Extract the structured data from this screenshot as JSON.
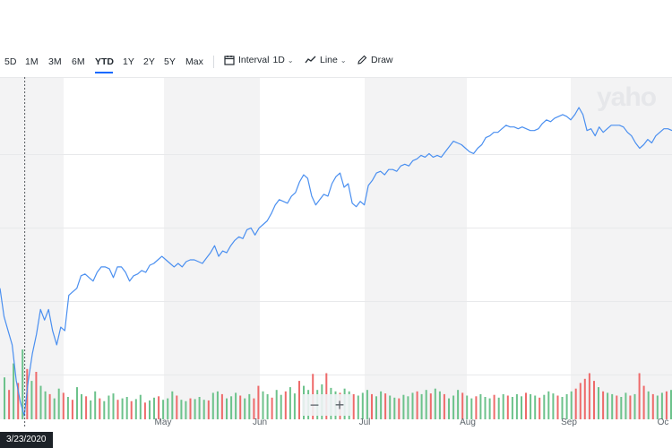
{
  "toolbar": {
    "ranges": [
      "5D",
      "1M",
      "3M",
      "6M",
      "YTD",
      "1Y",
      "2Y",
      "5Y",
      "Max"
    ],
    "active_range": "YTD",
    "interval_label": "Interval",
    "interval_value": "1D",
    "line_label": "Line",
    "draw_label": "Draw"
  },
  "watermark": "yaho",
  "zoom": {
    "minus": "−",
    "plus": "+"
  },
  "cursor_date": "3/23/2020",
  "colors": {
    "line": "#4a8ff0",
    "volume_up": "#6cc28b",
    "volume_down": "#ee6a6a",
    "band": "#f3f3f4",
    "accent": "#0f69ff"
  },
  "chart_data": {
    "type": "line",
    "x_labels": [
      "May",
      "Jun",
      "Jul",
      "Aug",
      "Sep",
      "Oc"
    ],
    "series": [
      {
        "values": [
          0.72,
          0.56,
          0.48,
          0.4,
          0.2,
          0.08,
          0.0,
          0.2,
          0.35,
          0.46,
          0.6,
          0.54,
          0.6,
          0.48,
          0.4,
          0.5,
          0.48,
          0.68,
          0.7,
          0.72,
          0.79,
          0.8,
          0.78,
          0.76,
          0.81,
          0.84,
          0.84,
          0.83,
          0.78,
          0.84,
          0.84,
          0.81,
          0.76,
          0.79,
          0.8,
          0.82,
          0.81,
          0.85,
          0.86,
          0.88,
          0.9,
          0.88,
          0.86,
          0.84,
          0.86,
          0.84,
          0.87,
          0.88,
          0.88,
          0.87,
          0.86,
          0.89,
          0.92,
          0.96,
          0.9,
          0.93,
          0.92,
          0.96,
          0.99,
          1.01,
          1.0,
          1.05,
          1.06,
          1.02,
          1.06,
          1.08,
          1.1,
          1.14,
          1.19,
          1.22,
          1.21,
          1.2,
          1.24,
          1.26,
          1.32,
          1.36,
          1.34,
          1.24,
          1.19,
          1.22,
          1.25,
          1.24,
          1.31,
          1.35,
          1.37,
          1.29,
          1.31,
          1.2,
          1.18,
          1.21,
          1.19,
          1.3,
          1.33,
          1.37,
          1.38,
          1.36,
          1.39,
          1.39,
          1.38,
          1.41,
          1.42,
          1.41,
          1.44,
          1.45,
          1.47,
          1.46,
          1.48,
          1.46,
          1.47,
          1.46,
          1.49,
          1.52,
          1.55,
          1.54,
          1.53,
          1.51,
          1.49,
          1.48,
          1.51,
          1.53,
          1.57,
          1.58,
          1.6,
          1.6,
          1.62,
          1.64,
          1.63,
          1.63,
          1.62,
          1.63,
          1.62,
          1.61,
          1.61,
          1.62,
          1.65,
          1.67,
          1.66,
          1.68,
          1.69,
          1.7,
          1.69,
          1.67,
          1.7,
          1.74,
          1.7,
          1.61,
          1.62,
          1.58,
          1.63,
          1.6,
          1.62,
          1.64,
          1.64,
          1.64,
          1.63,
          1.6,
          1.58,
          1.54,
          1.51,
          1.53,
          1.56,
          1.54,
          1.58,
          1.6,
          1.62,
          1.62,
          1.61
        ]
      }
    ],
    "volume": [
      {
        "v": 0.6,
        "d": false
      },
      {
        "v": 0.42,
        "d": true
      },
      {
        "v": 0.8,
        "d": false
      },
      {
        "v": 0.52,
        "d": true
      },
      {
        "v": 1.0,
        "d": false
      },
      {
        "v": 0.72,
        "d": true
      },
      {
        "v": 0.55,
        "d": false
      },
      {
        "v": 0.68,
        "d": true
      },
      {
        "v": 0.48,
        "d": false
      },
      {
        "v": 0.4,
        "d": false
      },
      {
        "v": 0.36,
        "d": true
      },
      {
        "v": 0.3,
        "d": false
      },
      {
        "v": 0.44,
        "d": false
      },
      {
        "v": 0.38,
        "d": true
      },
      {
        "v": 0.32,
        "d": false
      },
      {
        "v": 0.28,
        "d": true
      },
      {
        "v": 0.46,
        "d": false
      },
      {
        "v": 0.36,
        "d": false
      },
      {
        "v": 0.33,
        "d": true
      },
      {
        "v": 0.27,
        "d": false
      },
      {
        "v": 0.4,
        "d": false
      },
      {
        "v": 0.3,
        "d": true
      },
      {
        "v": 0.26,
        "d": false
      },
      {
        "v": 0.34,
        "d": false
      },
      {
        "v": 0.37,
        "d": false
      },
      {
        "v": 0.28,
        "d": true
      },
      {
        "v": 0.3,
        "d": false
      },
      {
        "v": 0.32,
        "d": false
      },
      {
        "v": 0.26,
        "d": true
      },
      {
        "v": 0.29,
        "d": false
      },
      {
        "v": 0.35,
        "d": false
      },
      {
        "v": 0.24,
        "d": true
      },
      {
        "v": 0.27,
        "d": false
      },
      {
        "v": 0.31,
        "d": false
      },
      {
        "v": 0.33,
        "d": true
      },
      {
        "v": 0.28,
        "d": false
      },
      {
        "v": 0.3,
        "d": false
      },
      {
        "v": 0.4,
        "d": false
      },
      {
        "v": 0.34,
        "d": true
      },
      {
        "v": 0.28,
        "d": false
      },
      {
        "v": 0.26,
        "d": false
      },
      {
        "v": 0.3,
        "d": true
      },
      {
        "v": 0.29,
        "d": false
      },
      {
        "v": 0.32,
        "d": false
      },
      {
        "v": 0.28,
        "d": false
      },
      {
        "v": 0.27,
        "d": true
      },
      {
        "v": 0.38,
        "d": false
      },
      {
        "v": 0.4,
        "d": false
      },
      {
        "v": 0.36,
        "d": true
      },
      {
        "v": 0.3,
        "d": false
      },
      {
        "v": 0.33,
        "d": false
      },
      {
        "v": 0.38,
        "d": false
      },
      {
        "v": 0.34,
        "d": true
      },
      {
        "v": 0.3,
        "d": false
      },
      {
        "v": 0.36,
        "d": false
      },
      {
        "v": 0.3,
        "d": true
      },
      {
        "v": 0.48,
        "d": true
      },
      {
        "v": 0.4,
        "d": false
      },
      {
        "v": 0.36,
        "d": false
      },
      {
        "v": 0.31,
        "d": true
      },
      {
        "v": 0.42,
        "d": false
      },
      {
        "v": 0.35,
        "d": false
      },
      {
        "v": 0.4,
        "d": true
      },
      {
        "v": 0.46,
        "d": false
      },
      {
        "v": 0.37,
        "d": false
      },
      {
        "v": 0.55,
        "d": true
      },
      {
        "v": 0.48,
        "d": false
      },
      {
        "v": 0.42,
        "d": false
      },
      {
        "v": 0.65,
        "d": true
      },
      {
        "v": 0.42,
        "d": false
      },
      {
        "v": 0.5,
        "d": false
      },
      {
        "v": 0.66,
        "d": true
      },
      {
        "v": 0.45,
        "d": false
      },
      {
        "v": 0.4,
        "d": false
      },
      {
        "v": 0.38,
        "d": true
      },
      {
        "v": 0.44,
        "d": false
      },
      {
        "v": 0.4,
        "d": false
      },
      {
        "v": 0.36,
        "d": true
      },
      {
        "v": 0.34,
        "d": false
      },
      {
        "v": 0.38,
        "d": false
      },
      {
        "v": 0.42,
        "d": false
      },
      {
        "v": 0.36,
        "d": true
      },
      {
        "v": 0.33,
        "d": false
      },
      {
        "v": 0.4,
        "d": false
      },
      {
        "v": 0.37,
        "d": true
      },
      {
        "v": 0.34,
        "d": false
      },
      {
        "v": 0.31,
        "d": false
      },
      {
        "v": 0.3,
        "d": true
      },
      {
        "v": 0.35,
        "d": false
      },
      {
        "v": 0.33,
        "d": false
      },
      {
        "v": 0.38,
        "d": false
      },
      {
        "v": 0.4,
        "d": true
      },
      {
        "v": 0.36,
        "d": false
      },
      {
        "v": 0.42,
        "d": false
      },
      {
        "v": 0.37,
        "d": true
      },
      {
        "v": 0.44,
        "d": false
      },
      {
        "v": 0.4,
        "d": false
      },
      {
        "v": 0.36,
        "d": true
      },
      {
        "v": 0.3,
        "d": false
      },
      {
        "v": 0.34,
        "d": false
      },
      {
        "v": 0.42,
        "d": false
      },
      {
        "v": 0.38,
        "d": true
      },
      {
        "v": 0.34,
        "d": false
      },
      {
        "v": 0.3,
        "d": false
      },
      {
        "v": 0.33,
        "d": true
      },
      {
        "v": 0.36,
        "d": false
      },
      {
        "v": 0.32,
        "d": false
      },
      {
        "v": 0.3,
        "d": false
      },
      {
        "v": 0.35,
        "d": true
      },
      {
        "v": 0.31,
        "d": false
      },
      {
        "v": 0.36,
        "d": false
      },
      {
        "v": 0.34,
        "d": true
      },
      {
        "v": 0.32,
        "d": false
      },
      {
        "v": 0.36,
        "d": false
      },
      {
        "v": 0.33,
        "d": false
      },
      {
        "v": 0.38,
        "d": true
      },
      {
        "v": 0.36,
        "d": false
      },
      {
        "v": 0.34,
        "d": false
      },
      {
        "v": 0.31,
        "d": true
      },
      {
        "v": 0.35,
        "d": false
      },
      {
        "v": 0.4,
        "d": false
      },
      {
        "v": 0.37,
        "d": false
      },
      {
        "v": 0.34,
        "d": true
      },
      {
        "v": 0.32,
        "d": false
      },
      {
        "v": 0.36,
        "d": false
      },
      {
        "v": 0.4,
        "d": false
      },
      {
        "v": 0.44,
        "d": true
      },
      {
        "v": 0.52,
        "d": true
      },
      {
        "v": 0.58,
        "d": true
      },
      {
        "v": 0.66,
        "d": true
      },
      {
        "v": 0.55,
        "d": true
      },
      {
        "v": 0.46,
        "d": false
      },
      {
        "v": 0.4,
        "d": true
      },
      {
        "v": 0.38,
        "d": false
      },
      {
        "v": 0.36,
        "d": false
      },
      {
        "v": 0.34,
        "d": true
      },
      {
        "v": 0.32,
        "d": false
      },
      {
        "v": 0.38,
        "d": false
      },
      {
        "v": 0.34,
        "d": true
      },
      {
        "v": 0.36,
        "d": false
      },
      {
        "v": 0.66,
        "d": true
      },
      {
        "v": 0.48,
        "d": true
      },
      {
        "v": 0.4,
        "d": false
      },
      {
        "v": 0.36,
        "d": true
      },
      {
        "v": 0.34,
        "d": false
      },
      {
        "v": 0.38,
        "d": false
      },
      {
        "v": 0.4,
        "d": true
      },
      {
        "v": 0.42,
        "d": false
      }
    ]
  }
}
